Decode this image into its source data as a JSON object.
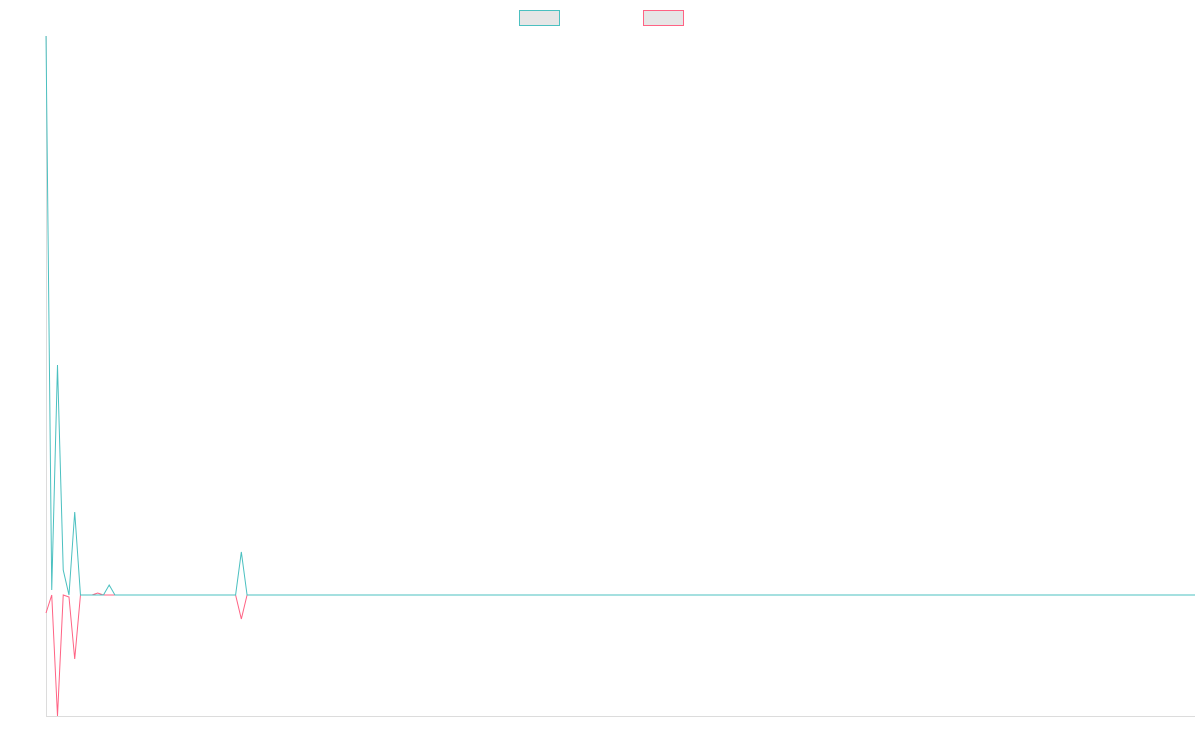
{
  "chart_data": {
    "type": "line",
    "categories": [
      null,
      null,
      null,
      null,
      null,
      null,
      null,
      null,
      null,
      null,
      null,
      null,
      null,
      null,
      null,
      null,
      null,
      null,
      null,
      null,
      null,
      null,
      null,
      null,
      null,
      null,
      null,
      null,
      null,
      null,
      null,
      null,
      null,
      null,
      null,
      null,
      null,
      null,
      null,
      null,
      null,
      null,
      null,
      null,
      null,
      null,
      null,
      null,
      null,
      null,
      null,
      null,
      null,
      null,
      null,
      null,
      null,
      null,
      null,
      null,
      null,
      null,
      null,
      null,
      null,
      null,
      null,
      null,
      null,
      null,
      null,
      null,
      null,
      null,
      null,
      null,
      null,
      null,
      null,
      null,
      null,
      null,
      null,
      null,
      null,
      null,
      null,
      null,
      null,
      null,
      null,
      null,
      null,
      null,
      null,
      null,
      null,
      null,
      null,
      null,
      null,
      null,
      null,
      null,
      null,
      null,
      null,
      null,
      null,
      null,
      null,
      null,
      null,
      null,
      null,
      null,
      null,
      null,
      null,
      null,
      null,
      null,
      null,
      null,
      null,
      null,
      null,
      null,
      null,
      null,
      null,
      null,
      null,
      null,
      null,
      null,
      null,
      null,
      null,
      null,
      null,
      null,
      null,
      null,
      null,
      null,
      null,
      null,
      null,
      null,
      null,
      null,
      null,
      null,
      null,
      null,
      null,
      null,
      null,
      null,
      null,
      null,
      null,
      null,
      null,
      null,
      null,
      null,
      null,
      null,
      null,
      null,
      null,
      null,
      null,
      null,
      null,
      null,
      null,
      null,
      null,
      null,
      null,
      null,
      null,
      null,
      null,
      null,
      null,
      null,
      null,
      null,
      null,
      null,
      null,
      null,
      null,
      null,
      null,
      null,
      null
    ],
    "series": [
      {
        "color": "#4bc0c0",
        "values": [
          559,
          5,
          230,
          25,
          0,
          83,
          0,
          0,
          0,
          0,
          0,
          10,
          0,
          0,
          0,
          0,
          0,
          0,
          0,
          0,
          0,
          0,
          0,
          0,
          0,
          0,
          0,
          0,
          0,
          0,
          0,
          0,
          0,
          0,
          43,
          0,
          0,
          0,
          0,
          0,
          0,
          0,
          0,
          0,
          0,
          0,
          0,
          0,
          0,
          0,
          0,
          0,
          0,
          0,
          0,
          0,
          0,
          0,
          0,
          0,
          0,
          0,
          0,
          0,
          0,
          0,
          0,
          0,
          0,
          0,
          0,
          0,
          0,
          0,
          0,
          0,
          0,
          0,
          0,
          0,
          0,
          0,
          0,
          0,
          0,
          0,
          0,
          0,
          0,
          0,
          0,
          0,
          0,
          0,
          0,
          0,
          0,
          0,
          0,
          0,
          0,
          0,
          0,
          0,
          0,
          0,
          0,
          0,
          0,
          0,
          0,
          0,
          0,
          0,
          0,
          0,
          0,
          0,
          0,
          0,
          0,
          0,
          0,
          0,
          0,
          0,
          0,
          0,
          0,
          0,
          0,
          0,
          0,
          0,
          0,
          0,
          0,
          0,
          0,
          0,
          0,
          0,
          0,
          0,
          0,
          0,
          0,
          0,
          0,
          0,
          0,
          0,
          0,
          0,
          0,
          0,
          0,
          0,
          0,
          0,
          0,
          0,
          0,
          0,
          0,
          0,
          0,
          0,
          0,
          0,
          0,
          0,
          0,
          0,
          0,
          0,
          0,
          0,
          0,
          0,
          0,
          0,
          0,
          0,
          0,
          0,
          0,
          0,
          0,
          0,
          0,
          0,
          0,
          0,
          0,
          0,
          0,
          0,
          0,
          0,
          0
        ]
      },
      {
        "color": "#ff6384",
        "values": [
          -18,
          0,
          -121,
          0,
          -2,
          -64,
          0,
          0,
          0,
          2,
          0,
          0,
          0,
          0,
          0,
          0,
          0,
          0,
          0,
          0,
          0,
          0,
          0,
          0,
          0,
          0,
          0,
          0,
          0,
          0,
          0,
          0,
          0,
          0,
          -24,
          0,
          0,
          0,
          0,
          0,
          0,
          0,
          0,
          0,
          0,
          0,
          0,
          0,
          0,
          0,
          0,
          0,
          0,
          0,
          0,
          0,
          0,
          0,
          0,
          0,
          0,
          0,
          0,
          0,
          0,
          0,
          0,
          0,
          0,
          0,
          0,
          0,
          0,
          0,
          0,
          0,
          0,
          0,
          0,
          0,
          0,
          0,
          0,
          0,
          0,
          0,
          0,
          0,
          0,
          0,
          0,
          0,
          0,
          0,
          0,
          0,
          0,
          0,
          0,
          0,
          0,
          0,
          0,
          0,
          0,
          0,
          0,
          0,
          0,
          0,
          0,
          0,
          0,
          0,
          0,
          0,
          0,
          0,
          0,
          0,
          0,
          0,
          0,
          0,
          0,
          0,
          0,
          0,
          0,
          0,
          0,
          0,
          0,
          0,
          0,
          0,
          0,
          0,
          0,
          0,
          0,
          0,
          0,
          0,
          0,
          0,
          0,
          0,
          0,
          0,
          0,
          0,
          0,
          0,
          0,
          0,
          0,
          0,
          0,
          0,
          0,
          0,
          0,
          0,
          0,
          0,
          0,
          0,
          0,
          0,
          0,
          0,
          0,
          0,
          0,
          0,
          0,
          0,
          0,
          0,
          0,
          0,
          0,
          0,
          0,
          0,
          0,
          0,
          0,
          0,
          0,
          0,
          0,
          0,
          0,
          0,
          0,
          0,
          0,
          0,
          0
        ]
      }
    ],
    "ylim": [
      -121,
      559
    ]
  }
}
